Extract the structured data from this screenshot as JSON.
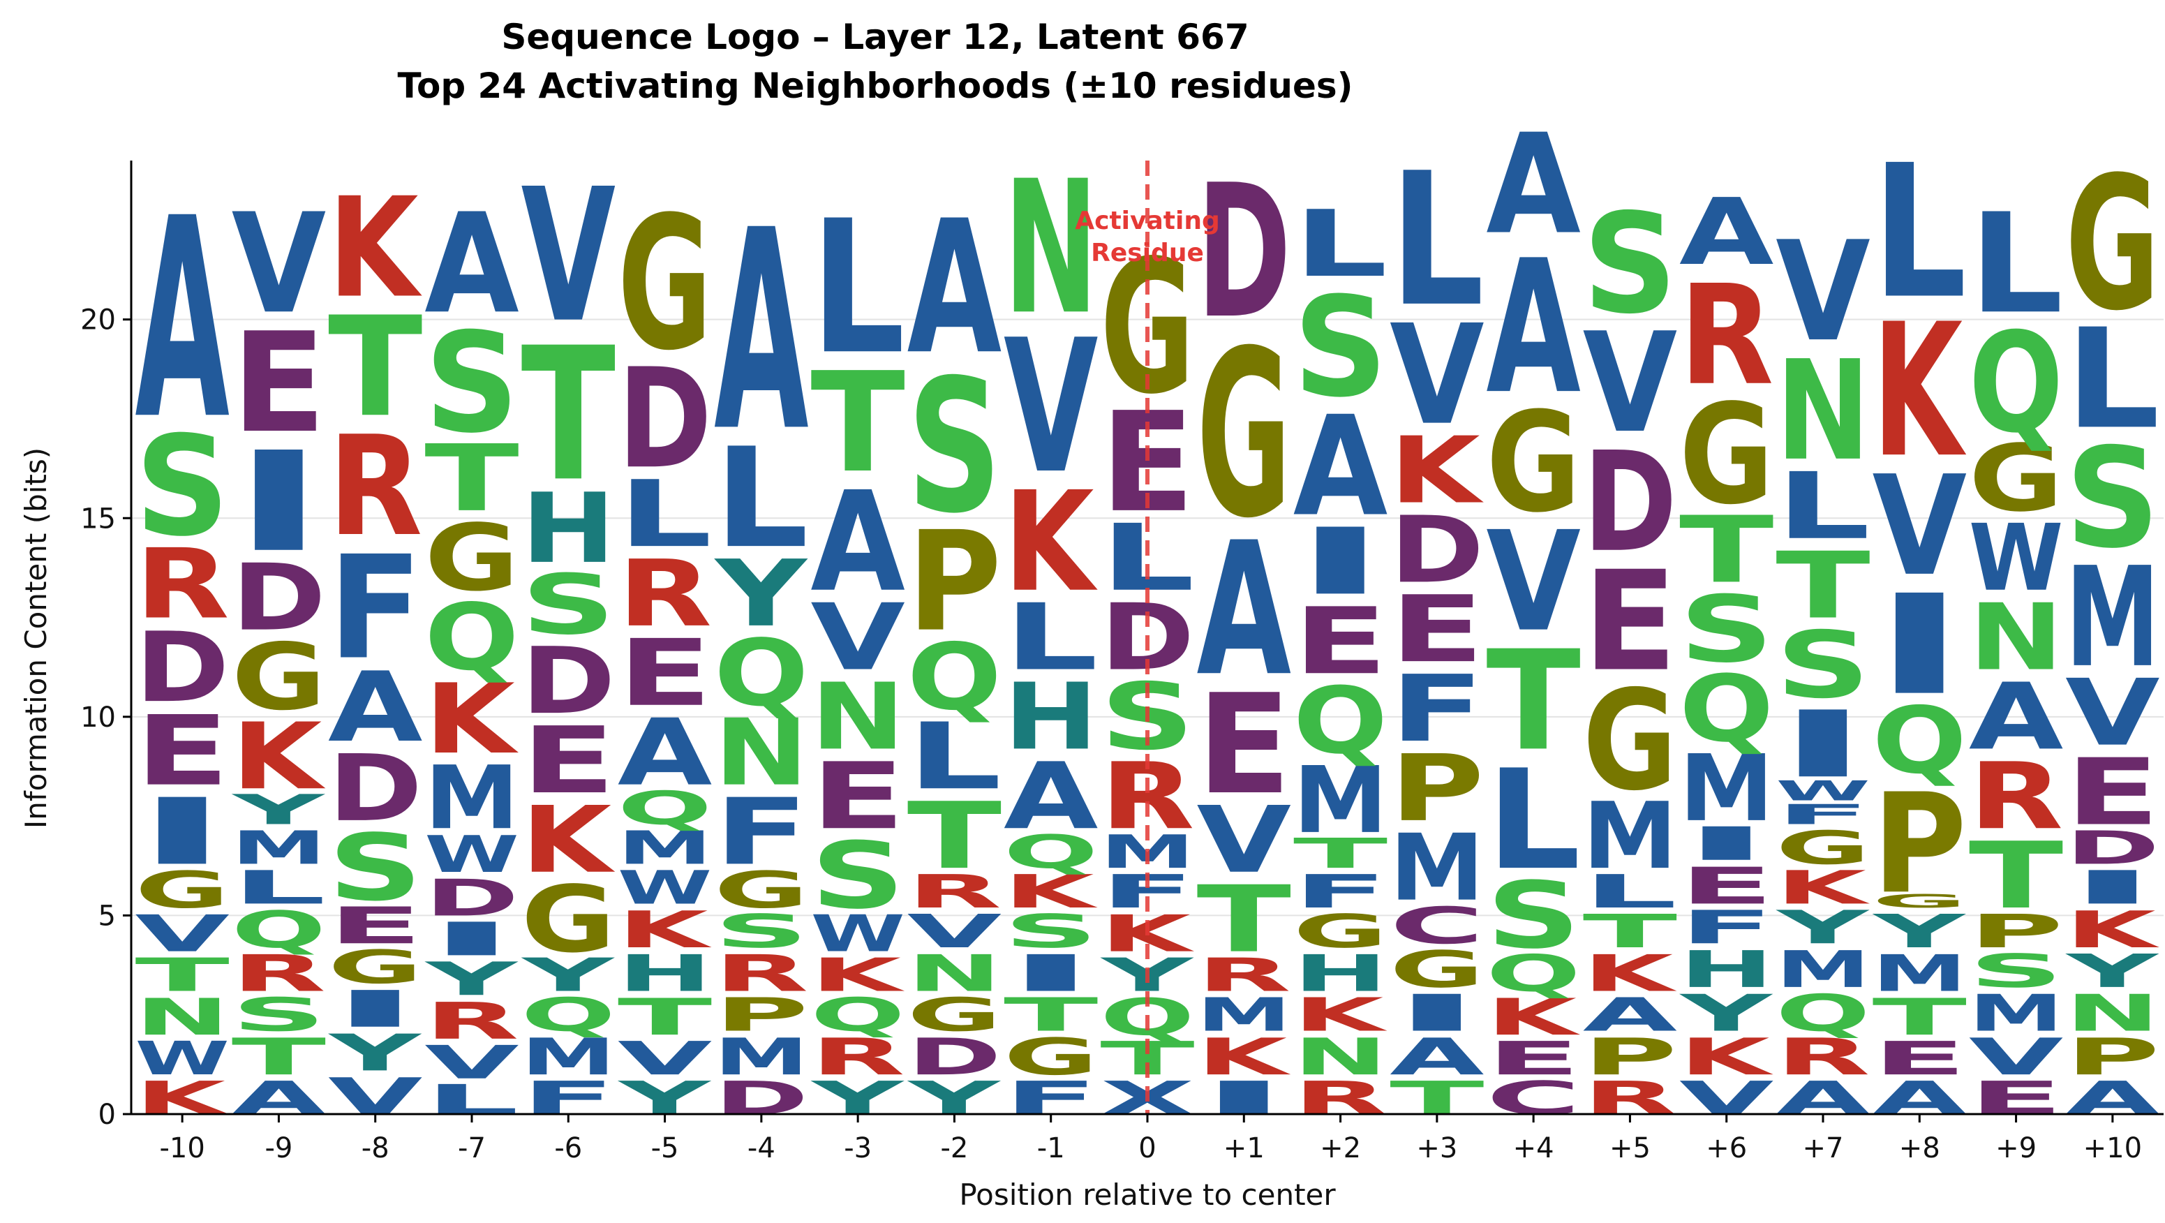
{
  "chart_data": {
    "type": "sequence-logo",
    "title": "Sequence Logo – Layer 12, Latent 667",
    "subtitle": "Top 24 Activating Neighborhoods (±10 residues)",
    "xlabel": "Position relative to center",
    "ylabel": "Information Content (bits)",
    "ylim": [
      0,
      24
    ],
    "yticks": [
      0,
      5,
      10,
      15,
      20
    ],
    "grid": "horizontal",
    "positions": [
      "-10",
      "-9",
      "-8",
      "-7",
      "-6",
      "-5",
      "-4",
      "-3",
      "-2",
      "-1",
      "0",
      "+1",
      "+2",
      "+3",
      "+4",
      "+5",
      "+6",
      "+7",
      "+8",
      "+9",
      "+10"
    ],
    "center_annotation": "Activating Residue",
    "colors": {
      "A": "#225a9b",
      "V": "#225a9b",
      "L": "#225a9b",
      "I": "#225a9b",
      "M": "#225a9b",
      "F": "#225a9b",
      "W": "#225a9b",
      "S": "#3dba47",
      "T": "#3dba47",
      "N": "#3dba47",
      "Q": "#3dba47",
      "G": "#777700",
      "D": "#6b2a6b",
      "E": "#6b2a6b",
      "K": "#c12f23",
      "R": "#c12f23",
      "H": "#1a7b7b",
      "Y": "#1a7b7b",
      "P": "#7a7a00",
      "C": "#6b2a6b",
      "marker": "#e53935"
    },
    "stacks": [
      [
        [
          "K",
          1.0
        ],
        [
          "W",
          1.0
        ],
        [
          "N",
          1.1
        ],
        [
          "T",
          1.0
        ],
        [
          "V",
          1.1
        ],
        [
          "G",
          1.1
        ],
        [
          "I",
          2.0
        ],
        [
          "E",
          2.1
        ],
        [
          "D",
          2.1
        ],
        [
          "R",
          2.1
        ],
        [
          "S",
          3.0
        ],
        [
          "A",
          6.0
        ]
      ],
      [
        [
          "A",
          1.0
        ],
        [
          "T",
          1.1
        ],
        [
          "S",
          1.0
        ],
        [
          "R",
          1.1
        ],
        [
          "Q",
          1.1
        ],
        [
          "L",
          1.0
        ],
        [
          "M",
          1.0
        ],
        [
          "Y",
          0.9
        ],
        [
          "K",
          2.0
        ],
        [
          "G",
          2.0
        ],
        [
          "D",
          2.0
        ],
        [
          "I",
          3.0
        ],
        [
          "E",
          3.0
        ],
        [
          "V",
          3.0
        ]
      ],
      [
        [
          "V",
          1.1
        ],
        [
          "Y",
          1.1
        ],
        [
          "I",
          1.1
        ],
        [
          "G",
          1.0
        ],
        [
          "E",
          1.1
        ],
        [
          "S",
          2.0
        ],
        [
          "D",
          2.0
        ],
        [
          "A",
          2.1
        ],
        [
          "F",
          3.1
        ],
        [
          "R",
          3.0
        ],
        [
          "T",
          3.0
        ],
        [
          "K",
          3.0
        ]
      ],
      [
        [
          "L",
          0.9
        ],
        [
          "V",
          1.0
        ],
        [
          "R",
          1.1
        ],
        [
          "Y",
          1.0
        ],
        [
          "I",
          1.0
        ],
        [
          "D",
          1.1
        ],
        [
          "W",
          1.1
        ],
        [
          "M",
          1.9
        ],
        [
          "K",
          2.1
        ],
        [
          "Q",
          2.0
        ],
        [
          "G",
          2.0
        ],
        [
          "T",
          2.0
        ],
        [
          "S",
          3.0
        ],
        [
          "A",
          3.0
        ]
      ],
      [
        [
          "F",
          1.0
        ],
        [
          "M",
          1.1
        ],
        [
          "Q",
          1.0
        ],
        [
          "Y",
          1.0
        ],
        [
          "G",
          2.0
        ],
        [
          "K",
          2.0
        ],
        [
          "E",
          2.0
        ],
        [
          "D",
          2.0
        ],
        [
          "S",
          1.8
        ],
        [
          "H",
          2.1
        ],
        [
          "T",
          4.0
        ],
        [
          "V",
          4.0
        ]
      ],
      [
        [
          "Y",
          1.0
        ],
        [
          "V",
          1.0
        ],
        [
          "T",
          1.1
        ],
        [
          "H",
          1.1
        ],
        [
          "K",
          1.1
        ],
        [
          "W",
          1.0
        ],
        [
          "M",
          1.0
        ],
        [
          "Q",
          1.0
        ],
        [
          "A",
          2.0
        ],
        [
          "E",
          2.0
        ],
        [
          "R",
          2.0
        ],
        [
          "L",
          2.0
        ],
        [
          "D",
          3.0
        ],
        [
          "G",
          4.0
        ]
      ],
      [
        [
          "D",
          1.0
        ],
        [
          "M",
          1.1
        ],
        [
          "P",
          1.0
        ],
        [
          "R",
          1.1
        ],
        [
          "S",
          1.0
        ],
        [
          "G",
          1.1
        ],
        [
          "F",
          2.0
        ],
        [
          "N",
          2.0
        ],
        [
          "Q",
          2.0
        ],
        [
          "Y",
          2.0
        ],
        [
          "L",
          3.0
        ],
        [
          "A",
          6.0
        ]
      ],
      [
        [
          "Y",
          1.0
        ],
        [
          "R",
          1.1
        ],
        [
          "Q",
          1.0
        ],
        [
          "K",
          1.0
        ],
        [
          "W",
          1.1
        ],
        [
          "S",
          2.0
        ],
        [
          "E",
          2.0
        ],
        [
          "N",
          2.0
        ],
        [
          "V",
          2.0
        ],
        [
          "A",
          3.0
        ],
        [
          "T",
          3.0
        ],
        [
          "L",
          4.0
        ]
      ],
      [
        [
          "Y",
          1.0
        ],
        [
          "D",
          1.1
        ],
        [
          "G",
          1.0
        ],
        [
          "N",
          1.1
        ],
        [
          "V",
          1.0
        ],
        [
          "R",
          1.0
        ],
        [
          "T",
          2.0
        ],
        [
          "L",
          2.0
        ],
        [
          "Q",
          2.0
        ],
        [
          "P",
          3.0
        ],
        [
          "S",
          4.0
        ],
        [
          "A",
          4.0
        ]
      ],
      [
        [
          "F",
          1.0
        ],
        [
          "G",
          1.1
        ],
        [
          "T",
          1.0
        ],
        [
          "I",
          1.1
        ],
        [
          "S",
          1.0
        ],
        [
          "K",
          1.0
        ],
        [
          "Q",
          1.0
        ],
        [
          "A",
          2.0
        ],
        [
          "H",
          2.0
        ],
        [
          "L",
          2.0
        ],
        [
          "K",
          3.0
        ],
        [
          "V",
          4.0
        ],
        [
          "N",
          4.0
        ]
      ],
      [
        [
          "X",
          1.0
        ],
        [
          "T",
          1.0
        ],
        [
          "Q",
          1.1
        ],
        [
          "Y",
          1.0
        ],
        [
          "K",
          1.1
        ],
        [
          "F",
          1.0
        ],
        [
          "M",
          1.0
        ],
        [
          "R",
          2.0
        ],
        [
          "S",
          2.0
        ],
        [
          "D",
          2.0
        ],
        [
          "L",
          2.0
        ],
        [
          "E",
          3.0
        ],
        [
          "G",
          4.0
        ]
      ],
      [
        [
          "I",
          1.0
        ],
        [
          "K",
          1.1
        ],
        [
          "M",
          1.0
        ],
        [
          "R",
          1.0
        ],
        [
          "T",
          2.0
        ],
        [
          "V",
          2.0
        ],
        [
          "E",
          3.0
        ],
        [
          "A",
          4.0
        ],
        [
          "G",
          5.0
        ],
        [
          "D",
          4.0
        ]
      ],
      [
        [
          "R",
          1.0
        ],
        [
          "N",
          1.1
        ],
        [
          "K",
          1.0
        ],
        [
          "H",
          1.1
        ],
        [
          "G",
          1.0
        ],
        [
          "F",
          1.0
        ],
        [
          "T",
          0.9
        ],
        [
          "M",
          2.0
        ],
        [
          "Q",
          2.0
        ],
        [
          "E",
          2.0
        ],
        [
          "I",
          2.0
        ],
        [
          "A",
          3.0
        ],
        [
          "S",
          3.0
        ],
        [
          "L",
          2.0
        ]
      ],
      [
        [
          "T",
          1.0
        ],
        [
          "A",
          1.1
        ],
        [
          "I",
          1.1
        ],
        [
          "G",
          1.1
        ],
        [
          "C",
          1.1
        ],
        [
          "M",
          2.0
        ],
        [
          "P",
          2.0
        ],
        [
          "F",
          2.0
        ],
        [
          "E",
          2.0
        ],
        [
          "D",
          2.0
        ],
        [
          "K",
          2.0
        ],
        [
          "V",
          3.0
        ],
        [
          "L",
          4.0
        ]
      ],
      [
        [
          "C",
          1.0
        ],
        [
          "E",
          1.0
        ],
        [
          "K",
          1.1
        ],
        [
          "Q",
          1.1
        ],
        [
          "S",
          2.0
        ],
        [
          "L",
          3.0
        ],
        [
          "T",
          3.0
        ],
        [
          "V",
          3.0
        ],
        [
          "G",
          3.0
        ],
        [
          "A",
          4.0
        ],
        [
          "A",
          3.0
        ]
      ],
      [
        [
          "R",
          1.0
        ],
        [
          "P",
          1.1
        ],
        [
          "A",
          1.0
        ],
        [
          "K",
          1.1
        ],
        [
          "T",
          1.0
        ],
        [
          "L",
          1.0
        ],
        [
          "M",
          2.0
        ],
        [
          "G",
          3.0
        ],
        [
          "E",
          3.0
        ],
        [
          "D",
          3.0
        ],
        [
          "V",
          3.0
        ],
        [
          "S",
          3.0
        ]
      ],
      [
        [
          "V",
          1.0
        ],
        [
          "K",
          1.1
        ],
        [
          "Y",
          1.1
        ],
        [
          "H",
          1.1
        ],
        [
          "F",
          1.0
        ],
        [
          "E",
          1.1
        ],
        [
          "I",
          1.0
        ],
        [
          "M",
          2.0
        ],
        [
          "Q",
          2.0
        ],
        [
          "S",
          2.0
        ],
        [
          "T",
          2.0
        ],
        [
          "G",
          3.0
        ],
        [
          "R",
          3.0
        ],
        [
          "A",
          2.0
        ]
      ],
      [
        [
          "A",
          1.0
        ],
        [
          "R",
          1.1
        ],
        [
          "Q",
          1.1
        ],
        [
          "M",
          1.1
        ],
        [
          "Y",
          1.0
        ],
        [
          "K",
          1.0
        ],
        [
          "G",
          1.0
        ],
        [
          "F",
          0.6
        ],
        [
          "W",
          0.6
        ],
        [
          "I",
          2.0
        ],
        [
          "S",
          2.0
        ],
        [
          "T",
          2.0
        ],
        [
          "L",
          2.0
        ],
        [
          "N",
          3.0
        ],
        [
          "V",
          3.0
        ]
      ],
      [
        [
          "A",
          1.0
        ],
        [
          "E",
          1.0
        ],
        [
          "T",
          1.1
        ],
        [
          "M",
          1.1
        ],
        [
          "Y",
          1.0
        ],
        [
          "G",
          0.4
        ],
        [
          "P",
          3.0
        ],
        [
          "Q",
          2.0
        ],
        [
          "I",
          3.0
        ],
        [
          "V",
          3.0
        ],
        [
          "K",
          4.0
        ],
        [
          "L",
          4.0
        ]
      ],
      [
        [
          "E",
          1.0
        ],
        [
          "V",
          1.1
        ],
        [
          "M",
          1.1
        ],
        [
          "S",
          1.0
        ],
        [
          "P",
          1.0
        ],
        [
          "T",
          2.0
        ],
        [
          "R",
          2.0
        ],
        [
          "A",
          2.0
        ],
        [
          "N",
          2.0
        ],
        [
          "W",
          2.0
        ],
        [
          "G",
          2.0
        ],
        [
          "Q",
          3.0
        ],
        [
          "L",
          3.0
        ]
      ],
      [
        [
          "A",
          1.0
        ],
        [
          "P",
          1.1
        ],
        [
          "N",
          1.1
        ],
        [
          "Y",
          1.0
        ],
        [
          "K",
          1.1
        ],
        [
          "I",
          1.0
        ],
        [
          "D",
          1.0
        ],
        [
          "E",
          2.0
        ],
        [
          "V",
          2.0
        ],
        [
          "M",
          3.0
        ],
        [
          "S",
          3.0
        ],
        [
          "L",
          3.0
        ],
        [
          "G",
          4.0
        ]
      ]
    ]
  }
}
